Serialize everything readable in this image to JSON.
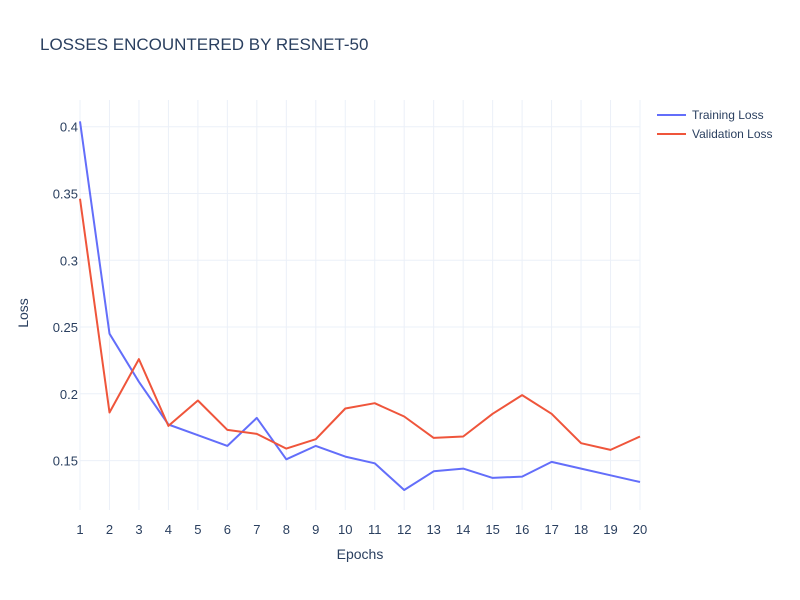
{
  "chart_data": {
    "type": "line",
    "title": "LOSSES ENCOUNTERED BY RESNET-50",
    "xlabel": "Epochs",
    "ylabel": "Loss",
    "x": [
      1,
      2,
      3,
      4,
      5,
      6,
      7,
      8,
      9,
      10,
      11,
      12,
      13,
      14,
      15,
      16,
      17,
      18,
      19,
      20
    ],
    "xlim": [
      1,
      20
    ],
    "ylim": [
      0.113,
      0.42
    ],
    "yticks": [
      0.15,
      0.2,
      0.25,
      0.3,
      0.35,
      0.4
    ],
    "ytick_labels": [
      "0.15",
      "0.2",
      "0.25",
      "0.3",
      "0.35",
      "0.4"
    ],
    "grid": true,
    "legend_position": "top-right",
    "series": [
      {
        "name": "Training Loss",
        "color": "#636efa",
        "values": [
          0.404,
          0.245,
          0.209,
          0.177,
          0.169,
          0.161,
          0.182,
          0.151,
          0.161,
          0.153,
          0.148,
          0.128,
          0.142,
          0.144,
          0.137,
          0.138,
          0.149,
          0.144,
          0.139,
          0.134
        ]
      },
      {
        "name": "Validation Loss",
        "color": "#ef553b",
        "values": [
          0.346,
          0.186,
          0.226,
          0.176,
          0.195,
          0.173,
          0.17,
          0.159,
          0.166,
          0.189,
          0.193,
          0.183,
          0.167,
          0.168,
          0.185,
          0.199,
          0.185,
          0.163,
          0.158,
          0.168
        ]
      }
    ]
  }
}
